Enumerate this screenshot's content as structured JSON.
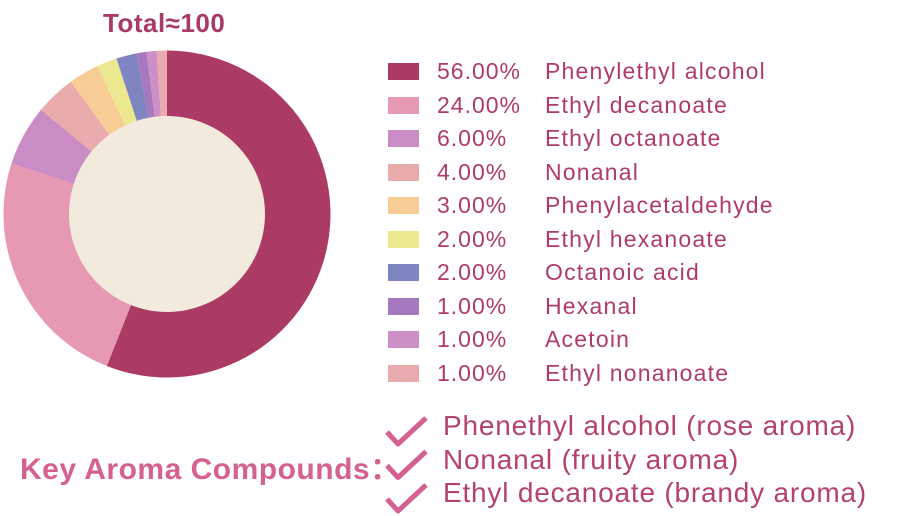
{
  "title": "Total≈100",
  "colors": {
    "background": "#ffffff",
    "legend_text": "#ae3b6a",
    "title_text": "#a93a68",
    "heading_text": "#d4618f",
    "item_text": "#b5426e",
    "check": "#d4618f",
    "hole": "#f1eadd"
  },
  "chart_data": {
    "type": "pie",
    "donut": true,
    "title": "Total≈100",
    "total": 100,
    "start_angle_deg": -90,
    "direction": "clockwise",
    "legend_position": "right",
    "hole_color": "#f1eadd",
    "outer_radius": 163.5,
    "inner_radius": 98,
    "series": [
      {
        "name": "Phenylethyl alcohol",
        "value": 56,
        "percent_label": "56.00%",
        "color": "#ab3a64"
      },
      {
        "name": "Ethyl decanoate",
        "value": 24,
        "percent_label": "24.00%",
        "color": "#e799b4"
      },
      {
        "name": "Ethyl octanoate",
        "value": 6,
        "percent_label": "6.00%",
        "color": "#c98cc5"
      },
      {
        "name": "Nonanal",
        "value": 4,
        "percent_label": "4.00%",
        "color": "#eaabad"
      },
      {
        "name": "Phenylacetaldehyde",
        "value": 3,
        "percent_label": "3.00%",
        "color": "#f7cc95"
      },
      {
        "name": "Ethyl hexanoate",
        "value": 2,
        "percent_label": "2.00%",
        "color": "#ebe88f"
      },
      {
        "name": "Octanoic acid",
        "value": 2,
        "percent_label": "2.00%",
        "color": "#7e85c0"
      },
      {
        "name": "Hexanal",
        "value": 1,
        "percent_label": "1.00%",
        "color": "#a678bd"
      },
      {
        "name": "Acetoin",
        "value": 1,
        "percent_label": "1.00%",
        "color": "#cd90c6"
      },
      {
        "name": "Ethyl nonanoate",
        "value": 1,
        "percent_label": "1.00%",
        "color": "#e9abad"
      }
    ]
  },
  "key_aroma": {
    "heading": "Key Aroma Compounds：",
    "check_color": "#d4618f",
    "items": [
      "Phenethyl alcohol (rose aroma)",
      "Nonanal (fruity aroma)",
      "Ethyl decanoate (brandy aroma)"
    ]
  }
}
